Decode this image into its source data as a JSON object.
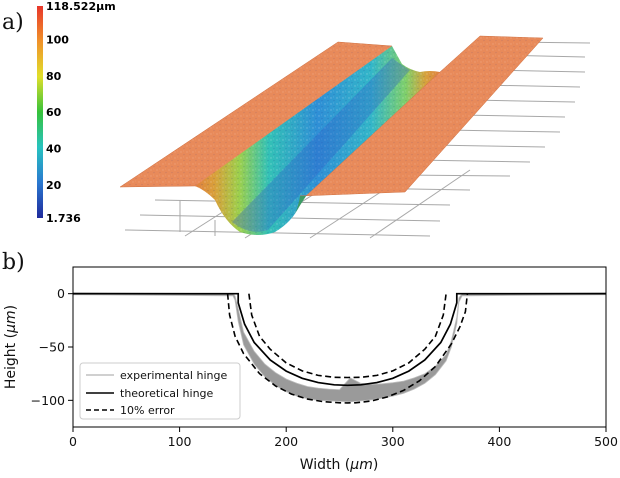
{
  "panels": {
    "a_label": "a)",
    "b_label": "b)"
  },
  "colorbar": {
    "labels": [
      "118.522µm",
      "100",
      "80",
      "60",
      "40",
      "20",
      "1.736"
    ],
    "values": [
      118.522,
      100,
      80,
      60,
      40,
      20,
      1.736
    ],
    "min": 1.736,
    "max": 118.522,
    "colors": [
      "#1f2a9c",
      "#2a78d0",
      "#27c3c0",
      "#37c23a",
      "#e0df2a",
      "#f0922a",
      "#e8362a"
    ]
  },
  "chart_data": {
    "type": "line",
    "xlabel_text": "Width (",
    "xlabel_unit": "μm",
    "xlabel_close": ")",
    "ylabel_text": "Height (",
    "ylabel_unit": "μm",
    "ylabel_close": ")",
    "xlim": [
      0,
      500
    ],
    "ylim": [
      -125,
      25
    ],
    "xticks": [
      0,
      100,
      200,
      300,
      400,
      500
    ],
    "yticks": [
      0,
      -50,
      -100
    ],
    "grid": false,
    "legend_position": "lower-left",
    "series": [
      {
        "name": "experimental hinge",
        "style": "band",
        "color": "#9a9a9a",
        "x": [
          0,
          150,
          152,
          155,
          160,
          170,
          180,
          190,
          200,
          210,
          220,
          230,
          240,
          250,
          260,
          270,
          280,
          290,
          300,
          310,
          320,
          330,
          340,
          350,
          355,
          360,
          362,
          365,
          500
        ],
        "upper": [
          1,
          0,
          -2,
          -14,
          -36,
          -54,
          -66,
          -74,
          -80,
          -84,
          -87,
          -88.5,
          -89.5,
          -90,
          -79,
          -84,
          -85,
          -84.5,
          -83.5,
          -82,
          -79,
          -75,
          -68,
          -57,
          -44,
          -22,
          -4,
          0,
          1
        ],
        "lower": [
          -1,
          -2,
          -6,
          -26,
          -48,
          -66,
          -78,
          -86,
          -92,
          -96,
          -98.5,
          -100,
          -100.5,
          -101,
          -101.5,
          -100.5,
          -99.5,
          -98,
          -96,
          -93.5,
          -89.5,
          -84,
          -76,
          -63,
          -50,
          -28,
          -8,
          -2,
          -1
        ]
      },
      {
        "name": "theoretical hinge",
        "style": "solid",
        "color": "#000000",
        "x": [
          0,
          155,
          155,
          161,
          170,
          185,
          200,
          215,
          230,
          245,
          257.5,
          270,
          285,
          300,
          315,
          330,
          345,
          354,
          360,
          360,
          500
        ],
        "y": [
          0,
          0,
          -8.6,
          -28.6,
          -45.8,
          -62.2,
          -72.6,
          -79.3,
          -83.4,
          -85.4,
          -85.9,
          -85.4,
          -83.4,
          -79.3,
          -72.6,
          -62.2,
          -45.8,
          -28.6,
          -8.6,
          0,
          0
        ]
      },
      {
        "name": "10% error",
        "style": "dashed",
        "color": "#000000",
        "x": [
          [
            145,
            146.9,
            152.1,
            160,
            175,
            190,
            205,
            220,
            235,
            250,
            257.5,
            265,
            280,
            295,
            310,
            325,
            340,
            355,
            362.9,
            368.1,
            370
          ],
          [
            165,
            167.6,
            175,
            185,
            200,
            215,
            230,
            245,
            257.5,
            270,
            285,
            300,
            315,
            330,
            340,
            347.4,
            350
          ]
        ],
        "y": [
          [
            0,
            -20,
            -40,
            -56.3,
            -74.9,
            -86.5,
            -94.2,
            -98.8,
            -101.3,
            -102.3,
            -102.4,
            -102.3,
            -100.6,
            -96.8,
            -90.7,
            -81.7,
            -68.3,
            -47.1,
            -31.1,
            -16.9,
            0
          ],
          [
            0,
            -20,
            -40,
            -52.1,
            -64.9,
            -72.4,
            -76.6,
            -78.4,
            -78.6,
            -78.4,
            -76.6,
            -72.4,
            -64.9,
            -52.1,
            -40,
            -20,
            0
          ]
        ]
      }
    ]
  }
}
